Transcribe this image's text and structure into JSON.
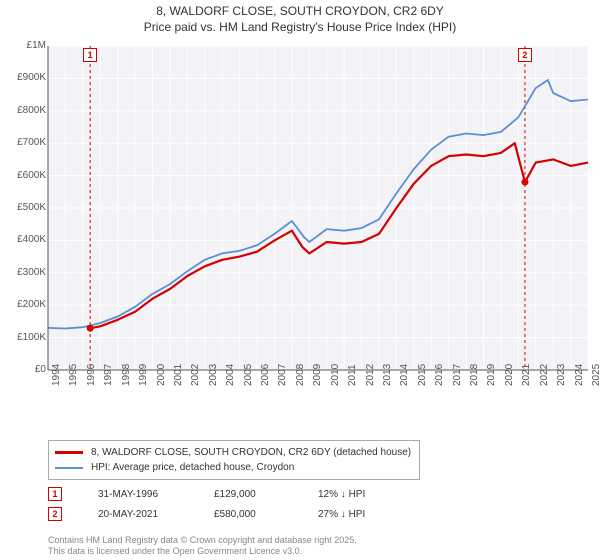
{
  "title_line1": "8, WALDORF CLOSE, SOUTH CROYDON, CR2 6DY",
  "title_line2": "Price paid vs. HM Land Registry's House Price Index (HPI)",
  "chart": {
    "type": "line",
    "background_color": "#f3f2f6",
    "grid_color": "#ffffff",
    "axis_color": "#555555",
    "label_fontsize": 10,
    "ylim": [
      0,
      1000000
    ],
    "ytick_step": 100000,
    "yticks": [
      "£0",
      "£100K",
      "£200K",
      "£300K",
      "£400K",
      "£500K",
      "£600K",
      "£700K",
      "£800K",
      "£900K",
      "£1M"
    ],
    "xlim_years": [
      1994,
      2025
    ],
    "xticks": [
      "1994",
      "1995",
      "1996",
      "1997",
      "1998",
      "1999",
      "2000",
      "2001",
      "2002",
      "2003",
      "2004",
      "2005",
      "2006",
      "2007",
      "2008",
      "2009",
      "2010",
      "2011",
      "2012",
      "2013",
      "2014",
      "2015",
      "2016",
      "2017",
      "2018",
      "2019",
      "2020",
      "2021",
      "2022",
      "2023",
      "2024",
      "2025"
    ],
    "series": [
      {
        "id": "property",
        "label": "8, WALDORF CLOSE, SOUTH CROYDON, CR2 6DY (detached house)",
        "color": "#d50000",
        "line_width": 2.2,
        "data": [
          [
            1996.42,
            129000
          ],
          [
            1997,
            135000
          ],
          [
            1998,
            155000
          ],
          [
            1999,
            180000
          ],
          [
            2000,
            220000
          ],
          [
            2001,
            250000
          ],
          [
            2002,
            290000
          ],
          [
            2003,
            320000
          ],
          [
            2004,
            340000
          ],
          [
            2005,
            350000
          ],
          [
            2006,
            365000
          ],
          [
            2007,
            400000
          ],
          [
            2008,
            430000
          ],
          [
            2008.6,
            380000
          ],
          [
            2009,
            360000
          ],
          [
            2010,
            395000
          ],
          [
            2011,
            390000
          ],
          [
            2012,
            395000
          ],
          [
            2013,
            420000
          ],
          [
            2014,
            500000
          ],
          [
            2015,
            575000
          ],
          [
            2016,
            630000
          ],
          [
            2017,
            660000
          ],
          [
            2018,
            665000
          ],
          [
            2019,
            660000
          ],
          [
            2020,
            670000
          ],
          [
            2020.8,
            700000
          ],
          [
            2021.38,
            580000
          ],
          [
            2022,
            640000
          ],
          [
            2023,
            650000
          ],
          [
            2024,
            630000
          ],
          [
            2025,
            640000
          ]
        ]
      },
      {
        "id": "hpi",
        "label": "HPI: Average price, detached house, Croydon",
        "color": "#5a8fd6",
        "line_width": 1.8,
        "data": [
          [
            1994,
            130000
          ],
          [
            1995,
            128000
          ],
          [
            1996,
            132000
          ],
          [
            1997,
            145000
          ],
          [
            1998,
            165000
          ],
          [
            1999,
            195000
          ],
          [
            2000,
            235000
          ],
          [
            2001,
            265000
          ],
          [
            2002,
            305000
          ],
          [
            2003,
            340000
          ],
          [
            2004,
            360000
          ],
          [
            2005,
            368000
          ],
          [
            2006,
            385000
          ],
          [
            2007,
            420000
          ],
          [
            2008,
            460000
          ],
          [
            2008.7,
            410000
          ],
          [
            2009,
            395000
          ],
          [
            2010,
            435000
          ],
          [
            2011,
            430000
          ],
          [
            2012,
            438000
          ],
          [
            2013,
            465000
          ],
          [
            2014,
            545000
          ],
          [
            2015,
            620000
          ],
          [
            2016,
            680000
          ],
          [
            2017,
            720000
          ],
          [
            2018,
            730000
          ],
          [
            2019,
            725000
          ],
          [
            2020,
            735000
          ],
          [
            2021,
            780000
          ],
          [
            2022,
            870000
          ],
          [
            2022.7,
            895000
          ],
          [
            2023,
            855000
          ],
          [
            2024,
            830000
          ],
          [
            2025,
            835000
          ]
        ]
      }
    ],
    "markers": [
      {
        "n": "1",
        "year": 1996.42,
        "color": "#d50000",
        "date": "31-MAY-1996",
        "price": "£129,000",
        "pct": "12% ↓ HPI"
      },
      {
        "n": "2",
        "year": 2021.38,
        "color": "#d50000",
        "date": "20-MAY-2021",
        "price": "£580,000",
        "pct": "27% ↓ HPI"
      }
    ]
  },
  "legend": {
    "rows": [
      {
        "color": "#d50000",
        "width": 3,
        "label": "8, WALDORF CLOSE, SOUTH CROYDON, CR2 6DY (detached house)"
      },
      {
        "color": "#5a8fd6",
        "width": 2,
        "label": "HPI: Average price, detached house, Croydon"
      }
    ]
  },
  "footer_line1": "Contains HM Land Registry data © Crown copyright and database right 2025.",
  "footer_line2": "This data is licensed under the Open Government Licence v3.0."
}
